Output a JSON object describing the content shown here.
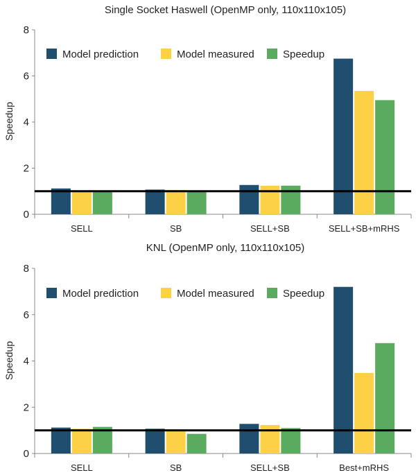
{
  "chart_data": [
    {
      "type": "bar",
      "title": "Single Socket Haswell (OpenMP only, 110x110x105)",
      "ylabel": "Speedup",
      "xlabel": "",
      "ylim": [
        0,
        8
      ],
      "yticks": [
        "0",
        "2",
        "4",
        "6",
        "8"
      ],
      "reference_line": 1,
      "legend_position": "top-left",
      "categories": [
        "SELL",
        "SB",
        "SELL+SB",
        "SELL+SB+mRHS"
      ],
      "series": [
        {
          "name": "Model prediction",
          "color": "#1f4e6e",
          "values": [
            1.12,
            1.07,
            1.27,
            6.75
          ]
        },
        {
          "name": "Model measured",
          "color": "#fcd145",
          "values": [
            1.0,
            1.05,
            1.24,
            5.35
          ]
        },
        {
          "name": "Speedup",
          "color": "#5aaa5f",
          "values": [
            1.0,
            1.0,
            1.24,
            4.95
          ]
        }
      ]
    },
    {
      "type": "bar",
      "title": "KNL (OpenMP only, 110x110x105)",
      "ylabel": "Speedup",
      "xlabel": "",
      "ylim": [
        0,
        8
      ],
      "yticks": [
        "0",
        "2",
        "4",
        "6",
        "8"
      ],
      "reference_line": 1,
      "legend_position": "top-left",
      "categories": [
        "SELL",
        "SB",
        "SELL+SB",
        "Best+mRHS"
      ],
      "series": [
        {
          "name": "Model prediction",
          "color": "#1f4e6e",
          "values": [
            1.12,
            1.07,
            1.28,
            7.2
          ]
        },
        {
          "name": "Model measured",
          "color": "#fcd145",
          "values": [
            1.07,
            1.0,
            1.23,
            3.48
          ]
        },
        {
          "name": "Speedup",
          "color": "#5aaa5f",
          "values": [
            1.15,
            0.85,
            1.1,
            4.77
          ]
        }
      ]
    }
  ]
}
